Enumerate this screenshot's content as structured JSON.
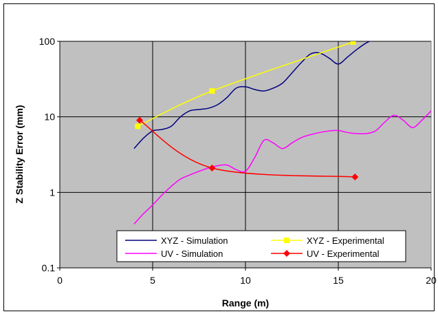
{
  "chart_data": {
    "type": "line",
    "title": "",
    "xlabel": "Range (m)",
    "ylabel": "Z Stability Error (mm)",
    "xlim": [
      0,
      20
    ],
    "ylim": [
      0.1,
      100
    ],
    "y_scale": "log",
    "x_ticks": [
      0,
      5,
      10,
      15,
      20
    ],
    "x_tick_labels": [
      "0",
      "5",
      "10",
      "15",
      "20"
    ],
    "y_ticks": [
      0.1,
      1,
      10,
      100
    ],
    "y_tick_labels": [
      "0.1",
      "1",
      "10",
      "100"
    ],
    "grid": true,
    "plot_background": "#c0c0c0",
    "legend_position": "bottom-center",
    "series": [
      {
        "name": "XYZ - Simulation",
        "color": "#000080",
        "marker": "none",
        "x": [
          4.0,
          4.5,
          5.0,
          5.5,
          6.0,
          6.5,
          7.0,
          7.5,
          8.0,
          8.5,
          9.0,
          9.5,
          10.0,
          10.5,
          11.0,
          11.5,
          12.0,
          12.5,
          13.0,
          13.5,
          14.0,
          14.5,
          15.0,
          15.5,
          16.0,
          16.5,
          17.0
        ],
        "y": [
          3.8,
          5.2,
          6.5,
          6.8,
          7.5,
          10.0,
          12.0,
          12.5,
          13.0,
          14.5,
          18.0,
          24.0,
          25.0,
          23.0,
          22.0,
          24.0,
          28.0,
          38.0,
          52.0,
          68.0,
          70.0,
          60.0,
          50.0,
          62.0,
          78.0,
          95.0,
          108.0
        ]
      },
      {
        "name": "XYZ - Experimental",
        "color": "#ffff00",
        "marker": "square",
        "x": [
          4.2,
          8.2,
          15.8
        ],
        "y": [
          7.5,
          22.0,
          98.0
        ]
      },
      {
        "name": "UV - Simulation",
        "color": "#ff00ff",
        "marker": "none",
        "x": [
          4.0,
          4.5,
          5.0,
          5.5,
          6.0,
          6.5,
          7.0,
          7.5,
          8.0,
          8.5,
          9.0,
          9.5,
          10.0,
          10.5,
          11.0,
          11.5,
          12.0,
          12.5,
          13.0,
          13.5,
          14.0,
          14.5,
          15.0,
          15.5,
          16.0,
          16.5,
          17.0,
          17.5,
          18.0,
          18.5,
          19.0,
          19.5,
          20.0
        ],
        "y": [
          0.38,
          0.52,
          0.68,
          0.92,
          1.2,
          1.5,
          1.7,
          1.9,
          2.1,
          2.25,
          2.3,
          2.0,
          1.9,
          2.9,
          4.9,
          4.5,
          3.8,
          4.5,
          5.3,
          5.8,
          6.2,
          6.5,
          6.6,
          6.2,
          6.0,
          6.0,
          6.5,
          8.5,
          10.5,
          9.0,
          7.2,
          9.0,
          12.0
        ]
      },
      {
        "name": "UV - Experimental",
        "color": "#ff0000",
        "marker": "diamond",
        "x": [
          4.3,
          8.2,
          15.9
        ],
        "y": [
          9.0,
          2.1,
          1.6
        ]
      }
    ]
  }
}
